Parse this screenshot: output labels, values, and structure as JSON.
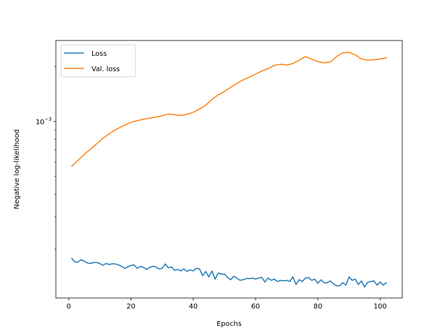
{
  "chart_data": {
    "type": "line",
    "xlabel": "Epochs",
    "ylabel": "Negative log-likelihood",
    "y_scale": "log",
    "xlim": [
      -4.1,
      107.1
    ],
    "ylim": [
      0.000108,
      0.00278
    ],
    "x_ticks": [
      0,
      20,
      40,
      60,
      80,
      100
    ],
    "x_tick_labels": [
      "0",
      "20",
      "40",
      "60",
      "80",
      "100"
    ],
    "y_ticks": [
      0.001
    ],
    "y_tick_labels": [
      {
        "base": "10",
        "exp": "−3"
      }
    ],
    "grid": false,
    "legend": {
      "placement": "top-left"
    },
    "series": [
      {
        "name": "Loss",
        "color": "#1f77b4",
        "x": [
          1,
          2,
          3,
          4,
          5,
          6,
          7,
          8,
          9,
          10,
          11,
          12,
          13,
          14,
          15,
          16,
          17,
          18,
          19,
          20,
          21,
          22,
          23,
          24,
          25,
          26,
          27,
          28,
          29,
          30,
          31,
          32,
          33,
          34,
          35,
          36,
          37,
          38,
          39,
          40,
          41,
          42,
          43,
          44,
          45,
          46,
          47,
          48,
          49,
          50,
          51,
          52,
          53,
          54,
          55,
          56,
          57,
          58,
          59,
          60,
          61,
          62,
          63,
          64,
          65,
          66,
          67,
          68,
          69,
          70,
          71,
          72,
          73,
          74,
          75,
          76,
          77,
          78,
          79,
          80,
          81,
          82,
          83,
          84,
          85,
          86,
          87,
          88,
          89,
          90,
          91,
          92,
          93,
          94,
          95,
          96,
          97,
          98,
          99,
          100,
          101,
          102
        ],
        "values": [
          0.000178,
          0.00017,
          0.00017,
          0.000175,
          0.000172,
          0.000168,
          0.000167,
          0.000169,
          0.000169,
          0.000167,
          0.000163,
          0.000167,
          0.000165,
          0.000166,
          0.000166,
          0.000164,
          0.000161,
          0.000157,
          0.00016,
          0.000163,
          0.000164,
          0.000157,
          0.000161,
          0.000159,
          0.000155,
          0.000159,
          0.000161,
          0.00016,
          0.000156,
          0.000157,
          0.000166,
          0.000158,
          0.00016,
          0.000153,
          0.000155,
          0.000152,
          0.000156,
          0.000151,
          0.000154,
          0.000152,
          0.000157,
          0.000156,
          0.000143,
          0.000151,
          0.000141,
          0.000152,
          0.000137,
          0.000148,
          0.000146,
          0.000146,
          0.00014,
          0.000136,
          0.000142,
          0.000139,
          0.000135,
          0.000136,
          0.000138,
          0.000138,
          0.000139,
          0.000137,
          0.000139,
          0.00014,
          0.000132,
          0.000139,
          0.000135,
          0.000137,
          0.000133,
          0.000135,
          0.000134,
          0.000135,
          0.000133,
          0.000141,
          0.000128,
          0.000136,
          0.000133,
          0.000139,
          0.00014,
          0.000135,
          0.000137,
          0.00013,
          0.000136,
          0.000131,
          0.000131,
          0.000134,
          0.000129,
          0.000126,
          0.000126,
          0.000131,
          0.000127,
          0.000141,
          0.000135,
          0.000137,
          0.000128,
          0.000134,
          0.000124,
          0.000132,
          0.000133,
          0.000134,
          0.000127,
          0.000132,
          0.000127,
          0.000131
        ]
      },
      {
        "name": "Val. loss",
        "color": "#ff7f0e",
        "x": [
          1,
          3,
          5,
          8,
          11,
          14,
          17,
          20,
          23,
          26,
          29,
          32,
          34,
          36,
          38,
          40,
          42,
          44,
          46,
          48,
          50,
          52,
          54,
          56,
          58,
          60,
          62,
          64,
          66,
          68,
          70,
          72,
          74,
          76,
          78,
          80,
          82,
          84,
          86,
          88,
          90,
          92,
          94,
          96,
          98,
          100,
          102
        ],
        "values": [
          0.00057,
          0.000613,
          0.00066,
          0.00073,
          0.00081,
          0.00088,
          0.00094,
          0.00099,
          0.00102,
          0.001045,
          0.001065,
          0.0011,
          0.00109,
          0.00108,
          0.001095,
          0.001125,
          0.00117,
          0.00123,
          0.00132,
          0.0014,
          0.00146,
          0.00154,
          0.00162,
          0.00169,
          0.00175,
          0.00182,
          0.00189,
          0.00195,
          0.00203,
          0.00206,
          0.00204,
          0.00208,
          0.00217,
          0.00227,
          0.0022,
          0.00213,
          0.0021,
          0.00212,
          0.00227,
          0.00238,
          0.00239,
          0.00232,
          0.0022,
          0.00217,
          0.00218,
          0.0022,
          0.00223
        ]
      }
    ]
  }
}
